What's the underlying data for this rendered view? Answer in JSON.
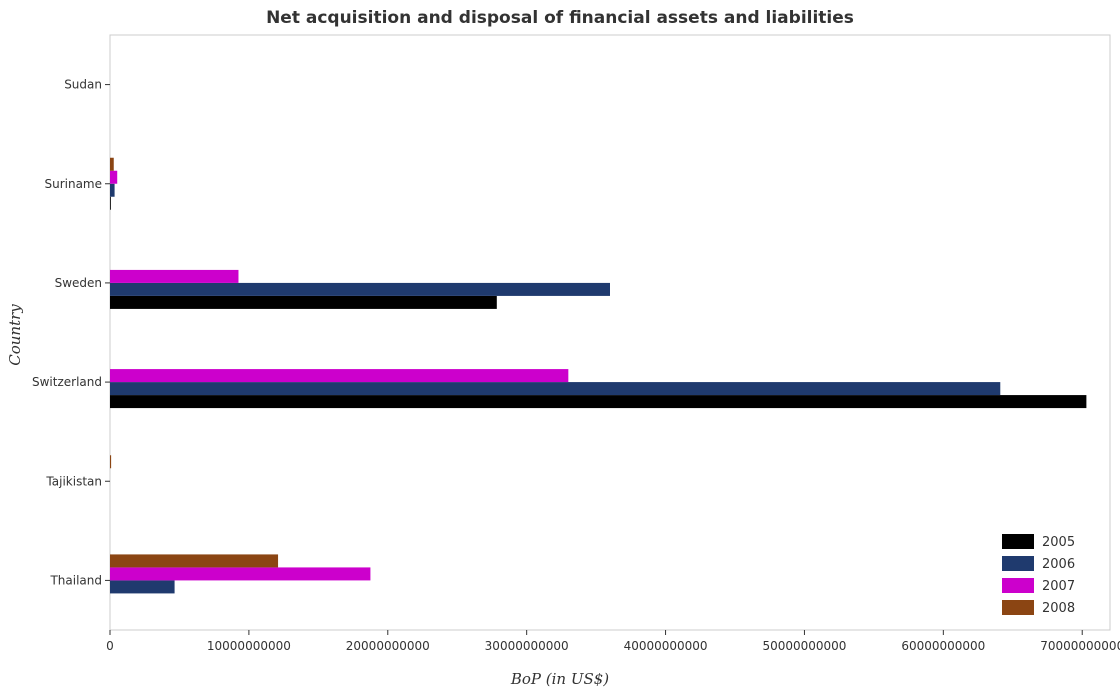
{
  "title": "Net acquisition and disposal of financial assets and liabilities",
  "chart_data": {
    "type": "bar",
    "orientation": "horizontal",
    "title": "Net acquisition and disposal of financial assets and liabilities",
    "xlabel": "BoP (in US$)",
    "ylabel": "Country",
    "xlim": [
      0,
      72000000000
    ],
    "x_ticks": [
      0,
      10000000000,
      20000000000,
      30000000000,
      40000000000,
      50000000000,
      60000000000,
      70000000000
    ],
    "x_tick_labels": [
      "0",
      "10000000000",
      "20000000000",
      "30000000000",
      "40000000000",
      "50000000000",
      "60000000000",
      "70000000000"
    ],
    "categories": [
      "Sudan",
      "Suriname",
      "Sweden",
      "Switzerland",
      "Tajikistan",
      "Thailand"
    ],
    "series": [
      {
        "name": "2005",
        "color": "#000000",
        "values": [
          0,
          60000000,
          27850000000,
          70300000000,
          0,
          0
        ]
      },
      {
        "name": "2006",
        "color": "#1f3a6e",
        "values": [
          0,
          330000000,
          36000000000,
          64100000000,
          0,
          4650000000
        ]
      },
      {
        "name": "2007",
        "color": "#cc00cc",
        "values": [
          0,
          520000000,
          9250000000,
          33000000000,
          0,
          18750000000
        ]
      },
      {
        "name": "2008",
        "color": "#8b4513",
        "values": [
          0,
          270000000,
          0,
          0,
          80000000,
          12100000000
        ]
      }
    ],
    "legend_position": "bottom-right",
    "grid": false
  }
}
